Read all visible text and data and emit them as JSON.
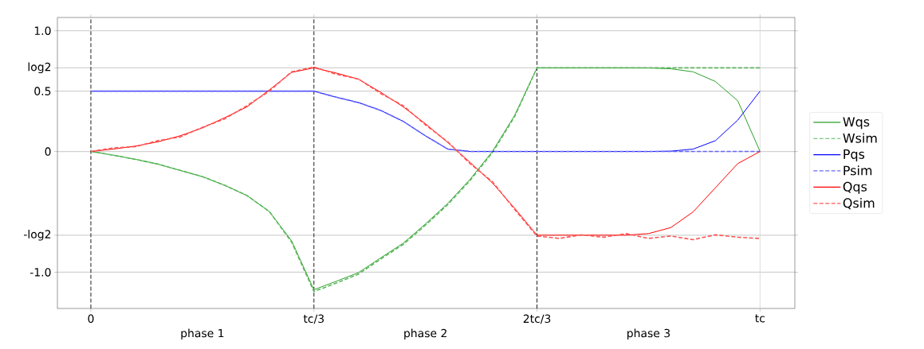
{
  "chart_data": {
    "type": "line",
    "categories": [
      "0",
      null,
      null,
      null,
      null,
      null,
      null,
      null,
      null,
      null,
      "tc/3",
      null,
      null,
      null,
      null,
      null,
      null,
      null,
      null,
      null,
      "2tc/3",
      null,
      null,
      null,
      null,
      null,
      null,
      null,
      null,
      null,
      "tc"
    ],
    "ylim": [
      -1.3,
      1.11
    ],
    "yticks": [
      {
        "value": -1,
        "label": "-1.0"
      },
      {
        "value": -0.693,
        "label": "-log2"
      },
      0,
      {
        "value": 0.5,
        "label": "0.5"
      },
      {
        "value": 0.693,
        "label": "log2"
      },
      {
        "value": 1,
        "label": "1.0"
      }
    ],
    "grid": "y",
    "legend": "right",
    "marker": "none",
    "ref_lines": [
      {
        "axis": "x",
        "value": "0",
        "color": "#000000",
        "line_style": "dashed"
      },
      {
        "axis": "x",
        "value": "tc/3",
        "color": "#000000",
        "line_style": "dashed"
      },
      {
        "axis": "x",
        "value": "2tc/3",
        "color": "#000000",
        "line_style": "dashed"
      },
      {
        "axis": "x",
        "value": "tc",
        "color": "#d9d9d9",
        "line_style": "solid"
      }
    ],
    "annotations": [
      "phase 1",
      "phase 2",
      "phase 3"
    ],
    "series": [
      {
        "name": "Wqs",
        "color": "#2ca02c",
        "line_style": "solid",
        "values": [
          0,
          -0.03,
          -0.065,
          -0.104,
          -0.156,
          -0.208,
          -0.28,
          -0.365,
          -0.497,
          -0.74,
          -1.145,
          -1.075,
          -1.003,
          -0.88,
          -0.76,
          -0.6,
          -0.43,
          -0.23,
          0.0,
          0.3,
          0.693,
          0.693,
          0.693,
          0.693,
          0.693,
          0.692,
          0.685,
          0.66,
          0.58,
          0.42,
          0
        ]
      },
      {
        "name": "Wsim",
        "color": "#5cb85c",
        "line_style": "dashed",
        "values": [
          0,
          -0.03,
          -0.065,
          -0.104,
          -0.156,
          -0.208,
          -0.28,
          -0.365,
          -0.497,
          -0.75,
          -1.16,
          -1.09,
          -1.015,
          -0.89,
          -0.77,
          -0.61,
          -0.44,
          -0.24,
          -0.01,
          0.29,
          0.693,
          0.693,
          0.693,
          0.693,
          0.693,
          0.693,
          0.693,
          0.693,
          0.693,
          0.693,
          0.693
        ]
      },
      {
        "name": "Pqs",
        "color": "#0000ff",
        "line_style": "solid",
        "values": [
          0.5,
          0.5,
          0.5,
          0.5,
          0.5,
          0.5,
          0.5,
          0.5,
          0.5,
          0.5,
          0.5,
          0.45,
          0.405,
          0.34,
          0.25,
          0.13,
          0.02,
          0,
          0,
          0,
          0,
          0,
          0,
          0,
          0,
          0,
          0.003,
          0.02,
          0.09,
          0.26,
          0.5
        ]
      },
      {
        "name": "Psim",
        "color": "#6666ff",
        "line_style": "dashed",
        "values": [
          0.5,
          0.5,
          0.5,
          0.5,
          0.5,
          0.5,
          0.5,
          0.5,
          0.5,
          0.5,
          0.5,
          0.45,
          0.405,
          0.34,
          0.25,
          0.13,
          0.02,
          0,
          0,
          0,
          0,
          0,
          0,
          0,
          0,
          0,
          0,
          0,
          0,
          0,
          0
        ]
      },
      {
        "name": "Qqs",
        "color": "#ff0000",
        "line_style": "solid",
        "values": [
          0,
          0.02,
          0.045,
          0.08,
          0.13,
          0.195,
          0.28,
          0.37,
          0.51,
          0.655,
          0.693,
          0.65,
          0.599,
          0.49,
          0.37,
          0.23,
          0.075,
          -0.09,
          -0.26,
          -0.47,
          -0.693,
          -0.693,
          -0.693,
          -0.693,
          -0.693,
          -0.68,
          -0.63,
          -0.5,
          -0.3,
          -0.1,
          0
        ]
      },
      {
        "name": "Qsim",
        "color": "#ff5555",
        "line_style": "dashed",
        "values": [
          0,
          0.03,
          0.04,
          0.09,
          0.12,
          0.2,
          0.27,
          0.38,
          0.5,
          0.66,
          0.7,
          0.64,
          0.6,
          0.48,
          0.38,
          0.22,
          0.08,
          -0.1,
          -0.25,
          -0.48,
          -0.7,
          -0.72,
          -0.69,
          -0.71,
          -0.68,
          -0.72,
          -0.7,
          -0.73,
          -0.69,
          -0.71,
          -0.72
        ]
      }
    ]
  }
}
